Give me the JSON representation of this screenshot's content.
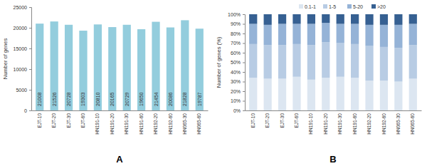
{
  "chart_data": [
    {
      "type": "bar",
      "title": "A",
      "y_label": "Number of genes",
      "categories": [
        "EJT-10",
        "EJT-20",
        "EJT-30",
        "EJT-60",
        "HN191-10",
        "HN191-20",
        "HN191-30",
        "HN191-60",
        "HN192-20",
        "HN192-60",
        "HN065-30",
        "HN065-60"
      ],
      "values": [
        21008,
        21526,
        20728,
        19303,
        20810,
        20165,
        20729,
        19650,
        21454,
        20086,
        21828,
        19787
      ],
      "color": "#93cddd",
      "ylim": [
        0,
        25000
      ],
      "yticks": [
        0,
        5000,
        10000,
        15000,
        20000,
        25000
      ],
      "grid": false,
      "data_labels": true
    },
    {
      "type": "bar",
      "title": "B",
      "y_label": "Number of genes (%)",
      "stacked": true,
      "legend": "top",
      "categories": [
        "EJT-10",
        "EJT-20",
        "EJT-30",
        "EJT-60",
        "HN191-10",
        "HN191-20",
        "HN191-30",
        "HN191-60",
        "HN192-20",
        "HN192-60",
        "HN065-30",
        "HN065-60"
      ],
      "series": [
        {
          "name": "0.1-1",
          "color": "#dce6f1",
          "values": [
            34,
            33,
            33,
            35,
            32,
            34,
            35,
            34,
            31,
            31,
            30,
            33
          ]
        },
        {
          "name": "1-5",
          "color": "#b8cce4",
          "values": [
            35,
            35,
            35,
            34,
            36,
            37,
            35,
            35,
            36,
            35,
            35,
            35
          ]
        },
        {
          "name": "5-20",
          "color": "#95b3d7",
          "values": [
            21,
            21,
            22,
            21,
            22,
            20,
            20,
            21,
            22,
            23,
            24,
            22
          ]
        },
        {
          "name": ">20",
          "color": "#366092",
          "values": [
            10,
            11,
            10,
            10,
            10,
            9,
            10,
            10,
            11,
            11,
            11,
            10
          ]
        }
      ],
      "ylim": [
        0,
        100
      ],
      "yticks": [
        {
          "value": 0,
          "label": "0%"
        },
        {
          "value": 10,
          "label": "10%"
        },
        {
          "value": 20,
          "label": "20%"
        },
        {
          "value": 30,
          "label": "30%"
        },
        {
          "value": 40,
          "label": "40%"
        },
        {
          "value": 50,
          "label": "50%"
        },
        {
          "value": 60,
          "label": "60%"
        },
        {
          "value": 70,
          "label": "70%"
        },
        {
          "value": 80,
          "label": "80%"
        },
        {
          "value": 90,
          "label": "90%"
        },
        {
          "value": 100,
          "label": "100%"
        }
      ],
      "grid": false
    }
  ]
}
